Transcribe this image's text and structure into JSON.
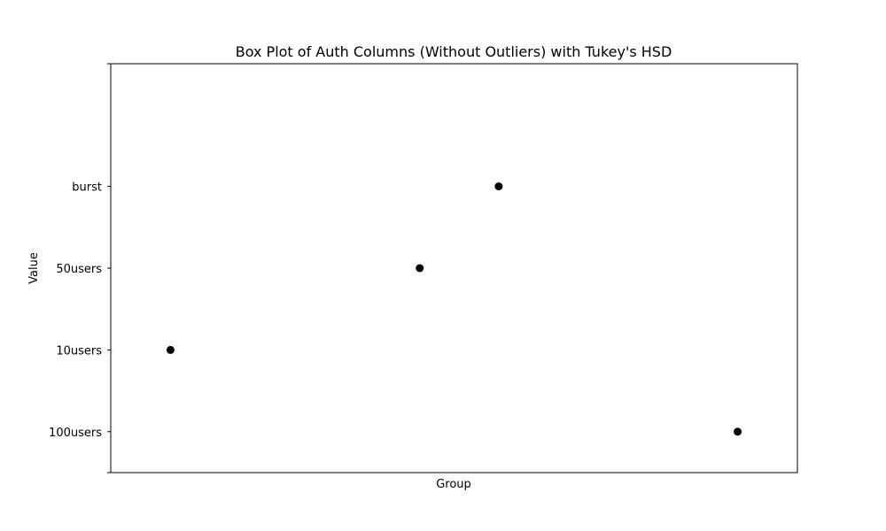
{
  "chart_data": {
    "type": "scatter",
    "title": "Box Plot of Auth Columns (Without Outliers) with Tukey's HSD",
    "xlabel": "Group",
    "ylabel": "Value",
    "y_categories": [
      "100users",
      "10users",
      "50users",
      "burst"
    ],
    "ylim": [
      -0.5,
      4.5
    ],
    "xlim": [
      0,
      1
    ],
    "x_ticks_visible": false,
    "grid": false,
    "legend": "none",
    "marker_color": "#000000",
    "points": [
      {
        "x": 0.087,
        "y": "10users"
      },
      {
        "x": 0.45,
        "y": "50users"
      },
      {
        "x": 0.565,
        "y": "burst"
      },
      {
        "x": 0.913,
        "y": "100users"
      }
    ]
  }
}
